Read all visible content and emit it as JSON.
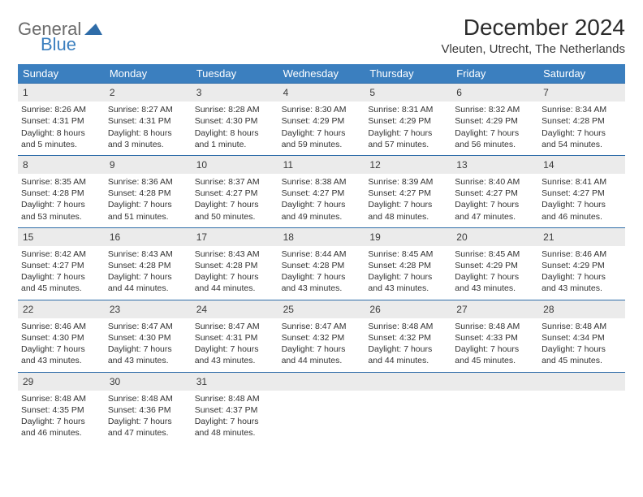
{
  "brand": {
    "primary": "General",
    "secondary": "Blue"
  },
  "title": "December 2024",
  "location": "Vleuten, Utrecht, The Netherlands",
  "colors": {
    "header_bg": "#3b7fbf",
    "header_text": "#ffffff",
    "daynum_bg": "#ebebeb",
    "daynum_border": "#2e6ca8",
    "body_text": "#323232",
    "page_bg": "#ffffff"
  },
  "typography": {
    "title_fontsize": 28,
    "location_fontsize": 15,
    "dayheader_fontsize": 13,
    "cell_fontsize": 10.5
  },
  "layout": {
    "columns": 7,
    "rows": 5,
    "cell_padding": 4
  },
  "day_headers": [
    "Sunday",
    "Monday",
    "Tuesday",
    "Wednesday",
    "Thursday",
    "Friday",
    "Saturday"
  ],
  "weeks": [
    [
      {
        "n": "1",
        "sr": "Sunrise: 8:26 AM",
        "ss": "Sunset: 4:31 PM",
        "dl": "Daylight: 8 hours and 5 minutes."
      },
      {
        "n": "2",
        "sr": "Sunrise: 8:27 AM",
        "ss": "Sunset: 4:31 PM",
        "dl": "Daylight: 8 hours and 3 minutes."
      },
      {
        "n": "3",
        "sr": "Sunrise: 8:28 AM",
        "ss": "Sunset: 4:30 PM",
        "dl": "Daylight: 8 hours and 1 minute."
      },
      {
        "n": "4",
        "sr": "Sunrise: 8:30 AM",
        "ss": "Sunset: 4:29 PM",
        "dl": "Daylight: 7 hours and 59 minutes."
      },
      {
        "n": "5",
        "sr": "Sunrise: 8:31 AM",
        "ss": "Sunset: 4:29 PM",
        "dl": "Daylight: 7 hours and 57 minutes."
      },
      {
        "n": "6",
        "sr": "Sunrise: 8:32 AM",
        "ss": "Sunset: 4:29 PM",
        "dl": "Daylight: 7 hours and 56 minutes."
      },
      {
        "n": "7",
        "sr": "Sunrise: 8:34 AM",
        "ss": "Sunset: 4:28 PM",
        "dl": "Daylight: 7 hours and 54 minutes."
      }
    ],
    [
      {
        "n": "8",
        "sr": "Sunrise: 8:35 AM",
        "ss": "Sunset: 4:28 PM",
        "dl": "Daylight: 7 hours and 53 minutes."
      },
      {
        "n": "9",
        "sr": "Sunrise: 8:36 AM",
        "ss": "Sunset: 4:28 PM",
        "dl": "Daylight: 7 hours and 51 minutes."
      },
      {
        "n": "10",
        "sr": "Sunrise: 8:37 AM",
        "ss": "Sunset: 4:27 PM",
        "dl": "Daylight: 7 hours and 50 minutes."
      },
      {
        "n": "11",
        "sr": "Sunrise: 8:38 AM",
        "ss": "Sunset: 4:27 PM",
        "dl": "Daylight: 7 hours and 49 minutes."
      },
      {
        "n": "12",
        "sr": "Sunrise: 8:39 AM",
        "ss": "Sunset: 4:27 PM",
        "dl": "Daylight: 7 hours and 48 minutes."
      },
      {
        "n": "13",
        "sr": "Sunrise: 8:40 AM",
        "ss": "Sunset: 4:27 PM",
        "dl": "Daylight: 7 hours and 47 minutes."
      },
      {
        "n": "14",
        "sr": "Sunrise: 8:41 AM",
        "ss": "Sunset: 4:27 PM",
        "dl": "Daylight: 7 hours and 46 minutes."
      }
    ],
    [
      {
        "n": "15",
        "sr": "Sunrise: 8:42 AM",
        "ss": "Sunset: 4:27 PM",
        "dl": "Daylight: 7 hours and 45 minutes."
      },
      {
        "n": "16",
        "sr": "Sunrise: 8:43 AM",
        "ss": "Sunset: 4:28 PM",
        "dl": "Daylight: 7 hours and 44 minutes."
      },
      {
        "n": "17",
        "sr": "Sunrise: 8:43 AM",
        "ss": "Sunset: 4:28 PM",
        "dl": "Daylight: 7 hours and 44 minutes."
      },
      {
        "n": "18",
        "sr": "Sunrise: 8:44 AM",
        "ss": "Sunset: 4:28 PM",
        "dl": "Daylight: 7 hours and 43 minutes."
      },
      {
        "n": "19",
        "sr": "Sunrise: 8:45 AM",
        "ss": "Sunset: 4:28 PM",
        "dl": "Daylight: 7 hours and 43 minutes."
      },
      {
        "n": "20",
        "sr": "Sunrise: 8:45 AM",
        "ss": "Sunset: 4:29 PM",
        "dl": "Daylight: 7 hours and 43 minutes."
      },
      {
        "n": "21",
        "sr": "Sunrise: 8:46 AM",
        "ss": "Sunset: 4:29 PM",
        "dl": "Daylight: 7 hours and 43 minutes."
      }
    ],
    [
      {
        "n": "22",
        "sr": "Sunrise: 8:46 AM",
        "ss": "Sunset: 4:30 PM",
        "dl": "Daylight: 7 hours and 43 minutes."
      },
      {
        "n": "23",
        "sr": "Sunrise: 8:47 AM",
        "ss": "Sunset: 4:30 PM",
        "dl": "Daylight: 7 hours and 43 minutes."
      },
      {
        "n": "24",
        "sr": "Sunrise: 8:47 AM",
        "ss": "Sunset: 4:31 PM",
        "dl": "Daylight: 7 hours and 43 minutes."
      },
      {
        "n": "25",
        "sr": "Sunrise: 8:47 AM",
        "ss": "Sunset: 4:32 PM",
        "dl": "Daylight: 7 hours and 44 minutes."
      },
      {
        "n": "26",
        "sr": "Sunrise: 8:48 AM",
        "ss": "Sunset: 4:32 PM",
        "dl": "Daylight: 7 hours and 44 minutes."
      },
      {
        "n": "27",
        "sr": "Sunrise: 8:48 AM",
        "ss": "Sunset: 4:33 PM",
        "dl": "Daylight: 7 hours and 45 minutes."
      },
      {
        "n": "28",
        "sr": "Sunrise: 8:48 AM",
        "ss": "Sunset: 4:34 PM",
        "dl": "Daylight: 7 hours and 45 minutes."
      }
    ],
    [
      {
        "n": "29",
        "sr": "Sunrise: 8:48 AM",
        "ss": "Sunset: 4:35 PM",
        "dl": "Daylight: 7 hours and 46 minutes."
      },
      {
        "n": "30",
        "sr": "Sunrise: 8:48 AM",
        "ss": "Sunset: 4:36 PM",
        "dl": "Daylight: 7 hours and 47 minutes."
      },
      {
        "n": "31",
        "sr": "Sunrise: 8:48 AM",
        "ss": "Sunset: 4:37 PM",
        "dl": "Daylight: 7 hours and 48 minutes."
      },
      null,
      null,
      null,
      null
    ]
  ]
}
